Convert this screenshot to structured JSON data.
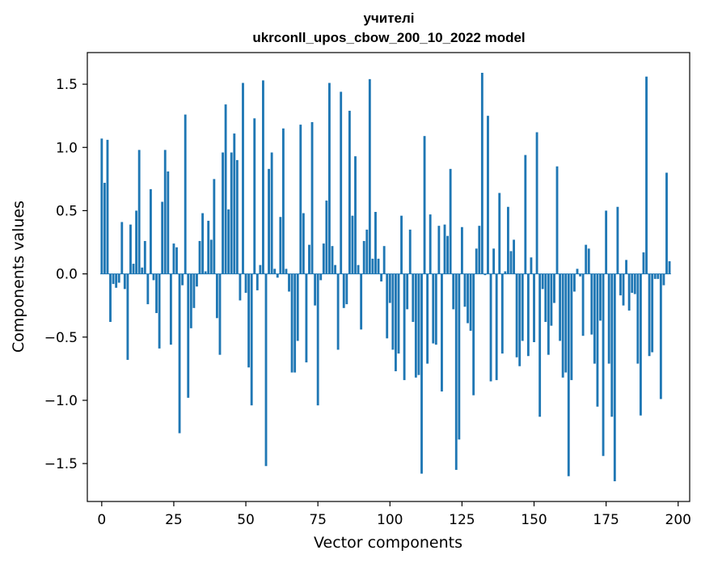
{
  "chart_data": {
    "type": "bar",
    "title": "учителі",
    "subtitle": "ukrconll_upos_cbow_200_10_2022 model",
    "xlabel": "Vector components",
    "ylabel": "Components values",
    "xlim": [
      -5,
      204
    ],
    "ylim": [
      -1.8,
      1.75
    ],
    "xticks": [
      0,
      25,
      50,
      75,
      100,
      125,
      150,
      175,
      200
    ],
    "yticks": [
      -1.5,
      -1.0,
      -0.5,
      0.0,
      0.5,
      1.0,
      1.5
    ],
    "ytick_labels": [
      "−1.5",
      "−1.0",
      "−0.5",
      "0.0",
      "0.5",
      "1.0",
      "1.5"
    ],
    "bar_color": "#1f77b4",
    "grid": false,
    "values": [
      1.07,
      0.72,
      1.06,
      -0.38,
      -0.08,
      -0.11,
      -0.07,
      0.41,
      -0.12,
      -0.68,
      0.39,
      0.08,
      0.5,
      0.98,
      0.05,
      0.26,
      -0.24,
      0.67,
      -0.05,
      -0.31,
      -0.59,
      0.57,
      0.98,
      0.81,
      -0.56,
      0.24,
      0.21,
      -1.26,
      -0.09,
      1.26,
      -0.98,
      -0.43,
      -0.27,
      -0.1,
      0.26,
      0.48,
      0.02,
      0.42,
      0.27,
      0.75,
      -0.35,
      -0.64,
      0.96,
      1.34,
      0.51,
      0.96,
      1.11,
      0.9,
      -0.21,
      1.51,
      -0.15,
      -0.74,
      -1.04,
      1.23,
      -0.13,
      0.07,
      1.53,
      -1.52,
      0.83,
      0.96,
      0.04,
      -0.03,
      0.45,
      1.15,
      0.04,
      -0.14,
      -0.78,
      -0.78,
      -0.53,
      1.18,
      0.48,
      -0.7,
      0.23,
      1.2,
      -0.25,
      -1.04,
      -0.05,
      0.24,
      0.58,
      1.51,
      0.22,
      0.07,
      -0.6,
      1.44,
      -0.27,
      -0.24,
      1.29,
      0.46,
      0.93,
      0.07,
      -0.44,
      0.26,
      0.35,
      1.54,
      0.12,
      0.49,
      0.12,
      -0.06,
      0.22,
      -0.51,
      -0.23,
      -0.6,
      -0.77,
      -0.63,
      0.46,
      -0.84,
      -0.28,
      0.35,
      -0.38,
      -0.82,
      -0.8,
      -1.58,
      1.09,
      -0.71,
      0.47,
      -0.55,
      -0.56,
      0.38,
      -0.93,
      0.39,
      0.3,
      0.83,
      -0.28,
      -1.55,
      -1.31,
      0.37,
      -0.26,
      -0.39,
      -0.45,
      -0.96,
      0.2,
      0.38,
      1.59,
      -0.01,
      1.25,
      -0.85,
      0.2,
      -0.84,
      0.64,
      -0.63,
      0.02,
      0.53,
      0.18,
      0.27,
      -0.66,
      -0.73,
      -0.53,
      0.94,
      -0.65,
      0.13,
      -0.54,
      1.12,
      -1.13,
      -0.12,
      -0.38,
      -0.64,
      -0.41,
      -0.23,
      0.85,
      -0.53,
      -0.82,
      -0.78,
      -1.6,
      -0.84,
      -0.14,
      0.04,
      -0.02,
      -0.49,
      0.23,
      0.2,
      -0.48,
      -0.71,
      -1.05,
      -0.37,
      -1.44,
      0.5,
      -0.71,
      -1.13,
      -1.64,
      0.53,
      -0.17,
      -0.25,
      0.11,
      -0.29,
      -0.15,
      -0.16,
      -0.71,
      -1.12,
      0.17,
      1.56,
      -0.65,
      -0.62,
      -0.04,
      -0.04,
      -0.99,
      -0.09,
      0.8,
      0.1
    ]
  }
}
